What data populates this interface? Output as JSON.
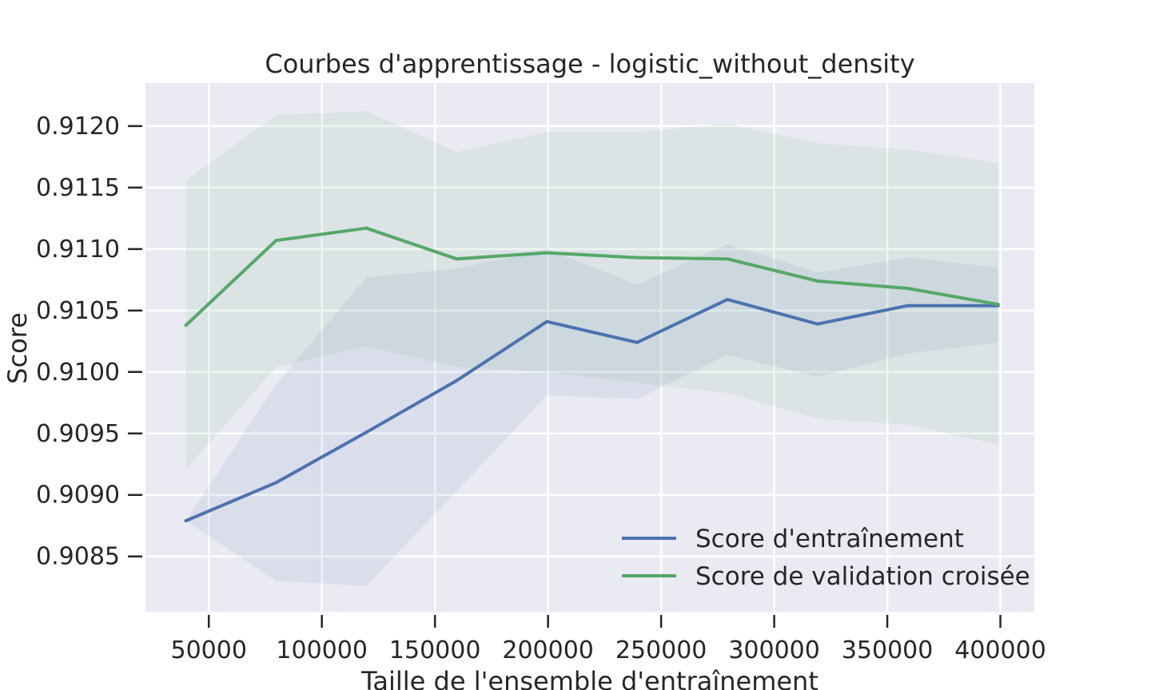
{
  "chart_data": {
    "type": "line",
    "title": "Courbes d'apprentissage - logistic_without_density",
    "xlabel": "Taille de l'ensemble d'entraînement",
    "ylabel": "Score",
    "xlim": [
      22000,
      415000
    ],
    "ylim": [
      0.90805,
      0.91235
    ],
    "x_ticks": [
      50000,
      100000,
      150000,
      200000,
      250000,
      300000,
      350000,
      400000
    ],
    "y_ticks": [
      0.9085,
      0.909,
      0.9095,
      0.91,
      0.9105,
      0.911,
      0.9115,
      0.912
    ],
    "y_tick_labels": [
      "0.9085",
      "0.9090",
      "0.9095",
      "0.9100",
      "0.9105",
      "0.9110",
      "0.9115",
      "0.9120"
    ],
    "x_tick_labels": [
      "50000",
      "100000",
      "150000",
      "200000",
      "250000",
      "300000",
      "350000",
      "400000"
    ],
    "grid": true,
    "legend_position": "lower-right",
    "x": [
      39900,
      79800,
      119700,
      159600,
      199500,
      239400,
      279300,
      319200,
      359100,
      399000
    ],
    "series": [
      {
        "name": "Score d'entraînement",
        "color": "#4c72b0",
        "values": [
          0.90879,
          0.9091,
          0.90951,
          0.90993,
          0.91041,
          0.91024,
          0.91059,
          0.91039,
          0.91054,
          0.91054
        ],
        "band_lower": [
          0.90879,
          0.9083,
          0.90826,
          0.90903,
          0.90981,
          0.90978,
          0.91014,
          0.90996,
          0.91015,
          0.91024
        ],
        "band_upper": [
          0.90879,
          0.9099,
          0.91077,
          0.91084,
          0.911,
          0.91071,
          0.91104,
          0.91081,
          0.91093,
          0.91085
        ]
      },
      {
        "name": "Score de validation croisée",
        "color": "#55a868",
        "values": [
          0.91038,
          0.91107,
          0.91117,
          0.91092,
          0.91097,
          0.91093,
          0.91092,
          0.91074,
          0.91068,
          0.91055
        ],
        "band_lower": [
          0.90921,
          0.91004,
          0.91021,
          0.91004,
          0.91,
          0.90991,
          0.90983,
          0.90962,
          0.90957,
          0.90941
        ],
        "band_upper": [
          0.91156,
          0.91209,
          0.91212,
          0.91179,
          0.91195,
          0.91195,
          0.91202,
          0.91186,
          0.91181,
          0.9117
        ]
      }
    ]
  }
}
